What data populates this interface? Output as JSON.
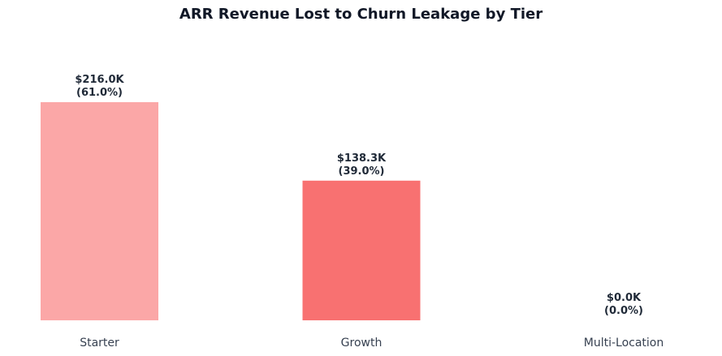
{
  "chart_data": {
    "type": "bar",
    "title": "ARR Revenue Lost to Churn Leakage by Tier",
    "xlabel": "",
    "ylabel": "",
    "categories": [
      "Starter",
      "Growth",
      "Multi-Location"
    ],
    "values": [
      216.0,
      138.3,
      0.0
    ],
    "value_labels": [
      "$216.0K",
      "$138.3K",
      "$0.0K"
    ],
    "percent_labels": [
      "(61.0%)",
      "(39.0%)",
      "(0.0%)"
    ],
    "colors": [
      "#fba7a7",
      "#f87171",
      "#ef4444"
    ],
    "ylim": [
      0,
      216.0
    ],
    "grid": false,
    "legend": "none"
  }
}
